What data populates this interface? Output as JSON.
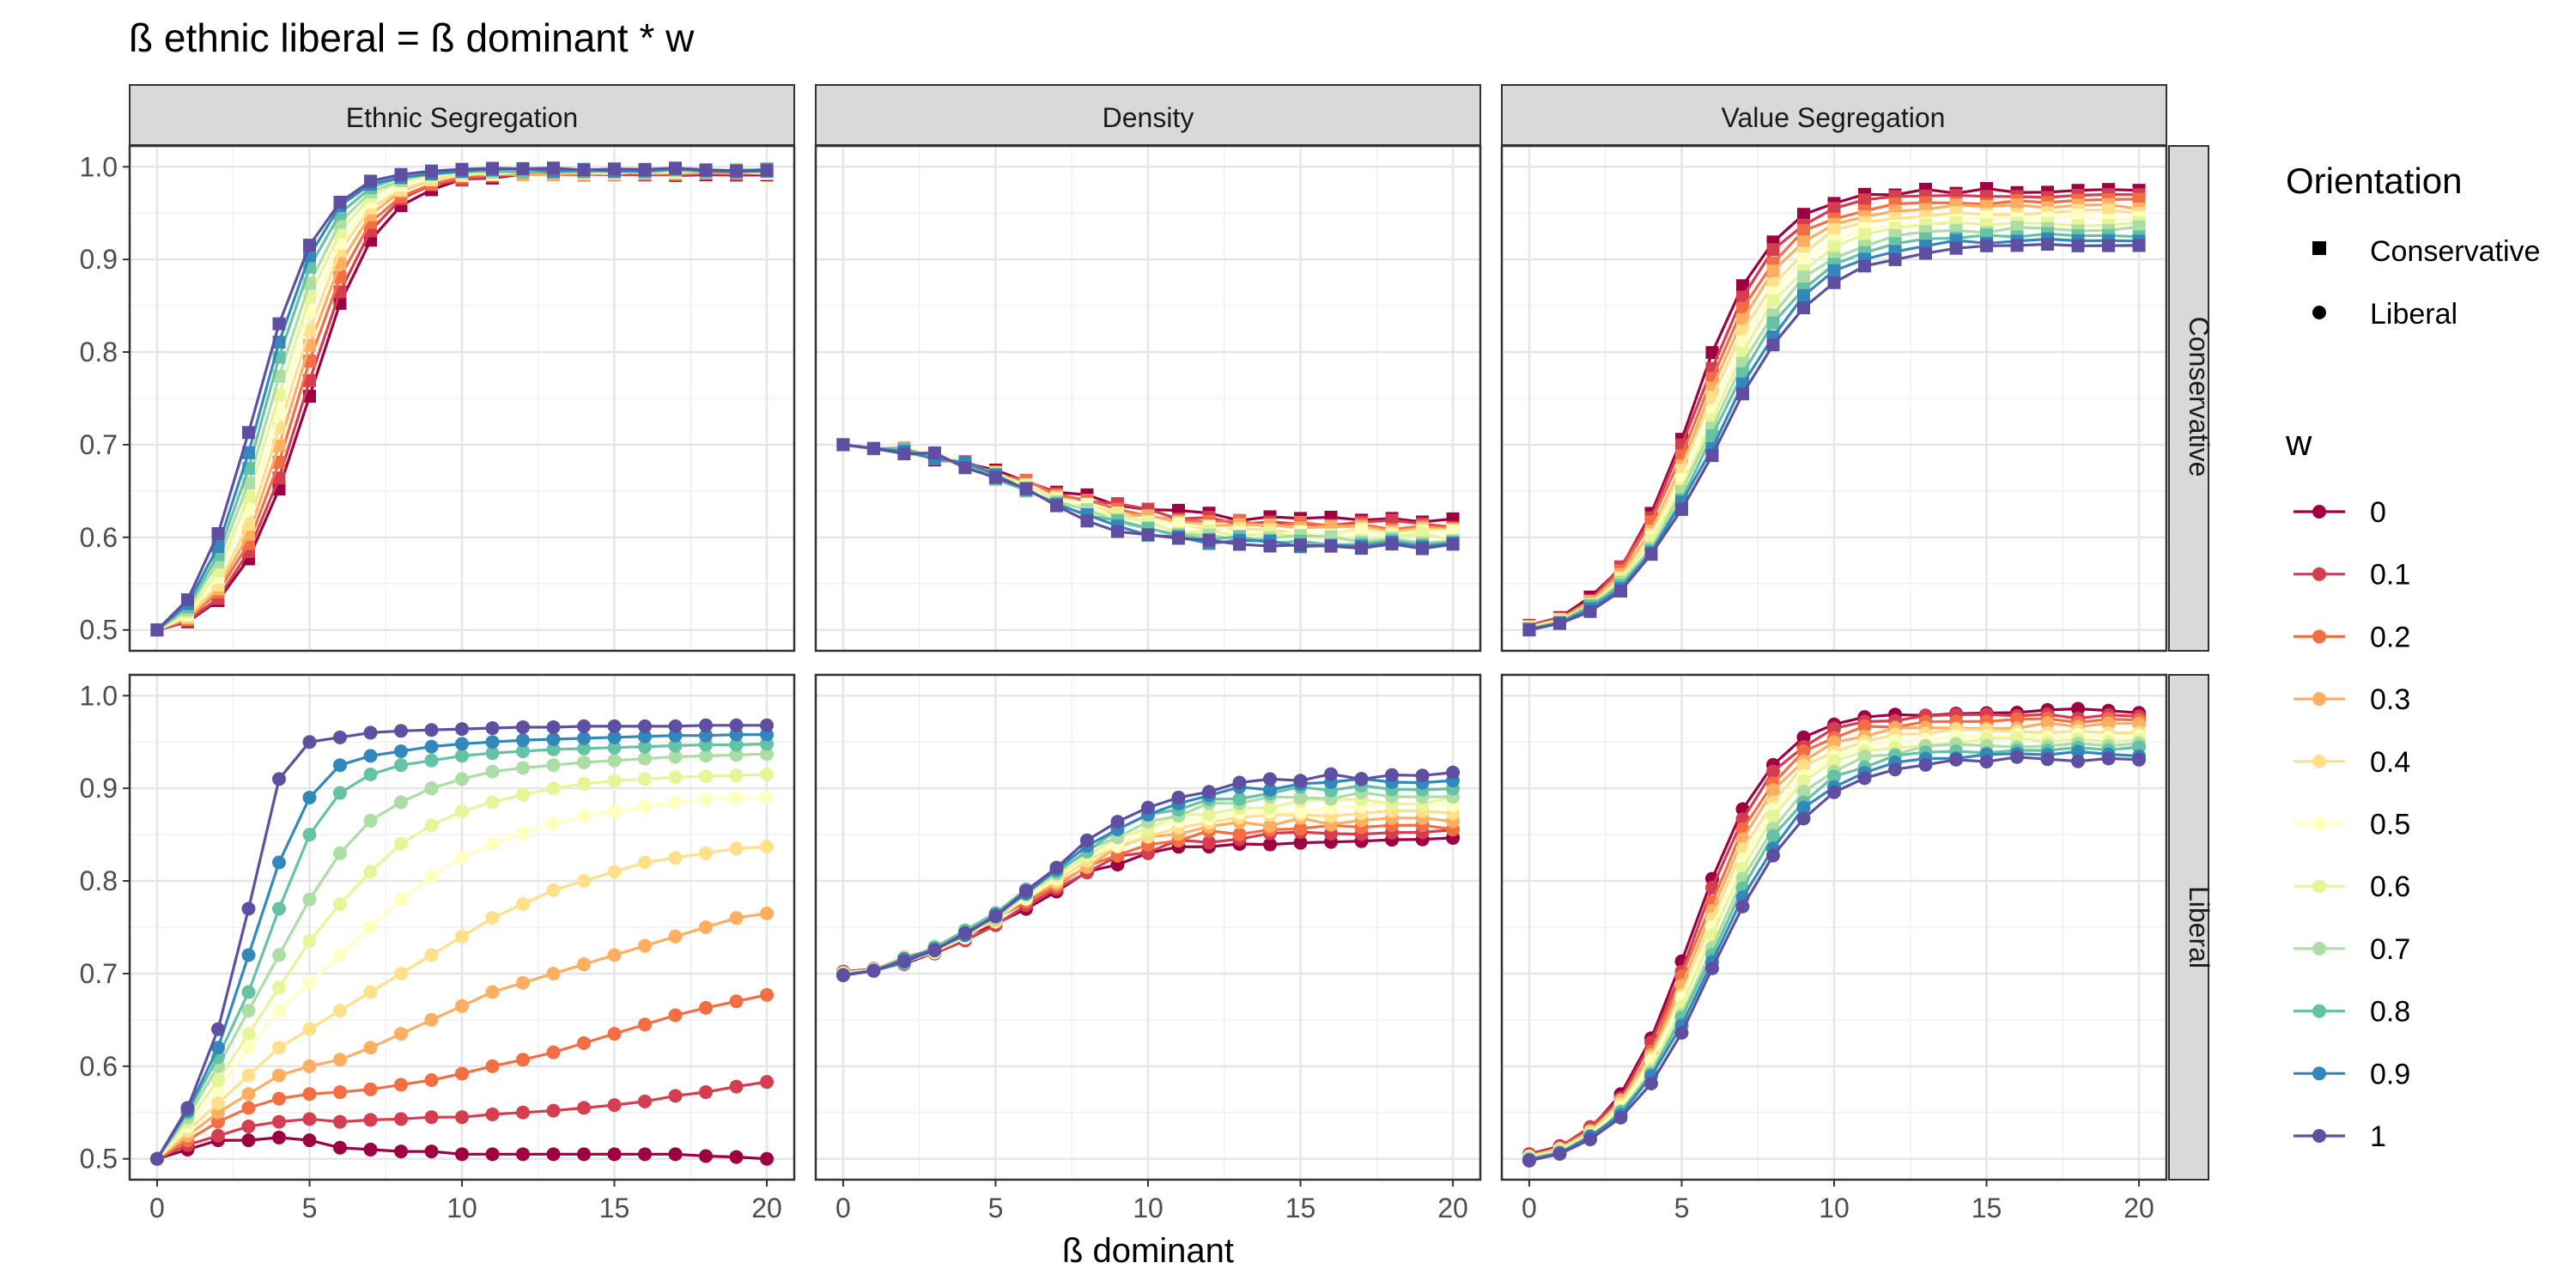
{
  "chart_data": {
    "type": "line",
    "title": "ß ethnic liberal = ß dominant * w",
    "xlabel": "ß dominant",
    "ylabel": "",
    "xlim": [
      0,
      20
    ],
    "ylim": [
      0.5,
      1.0
    ],
    "x_ticks": [
      0,
      5,
      10,
      15,
      20
    ],
    "y_ticks": [
      0.5,
      0.6,
      0.7,
      0.8,
      0.9,
      1.0
    ],
    "x_tick_labels": [
      "0",
      "5",
      "10",
      "15",
      "20"
    ],
    "y_tick_labels": [
      "0.5",
      "0.6",
      "0.7",
      "0.8",
      "0.9",
      "1.0"
    ],
    "grid": true,
    "facet_columns": [
      "Ethnic Segregation",
      "Density",
      "Value Segregation"
    ],
    "facet_rows": [
      "Conservative",
      "Liberal"
    ],
    "legend": {
      "position": "right",
      "orientation_title": "Orientation",
      "orientation_items": [
        {
          "label": "Conservative",
          "shape": "square"
        },
        {
          "label": "Liberal",
          "shape": "circle"
        }
      ],
      "w_title": "w",
      "w_items": [
        "0",
        "0.1",
        "0.2",
        "0.3",
        "0.4",
        "0.5",
        "0.6",
        "0.7",
        "0.8",
        "0.9",
        "1"
      ]
    },
    "w_colors": [
      "#9E0142",
      "#D53E4F",
      "#F46D43",
      "#FDAE61",
      "#FEE08B",
      "#FFFFBF",
      "#E6F598",
      "#ABDDA4",
      "#66C2A5",
      "#3288BD",
      "#5E4FA2"
    ],
    "w_values": [
      0,
      0.1,
      0.2,
      0.3,
      0.4,
      0.5,
      0.6,
      0.7,
      0.8,
      0.9,
      1
    ],
    "x": [
      0,
      1,
      2,
      3,
      4,
      5,
      6,
      7,
      8,
      9,
      10,
      11,
      12,
      13,
      14,
      15,
      16,
      17,
      18,
      19,
      20
    ],
    "panels": [
      {
        "facet_column": "Ethnic Segregation",
        "facet_row": "Conservative",
        "marker": "square",
        "start": [
          0.5,
          0.5
        ],
        "end": [
          0.992,
          0.997
        ],
        "mid": [
          4.9,
          3.2
        ],
        "steepness": [
          0.85,
          0.95
        ],
        "dip": [
          0,
          0
        ],
        "dip_at": 0,
        "noise": 0.002
      },
      {
        "facet_column": "Density",
        "facet_row": "Conservative",
        "marker": "square",
        "start": [
          0.7,
          0.7
        ],
        "end": [
          0.617,
          0.589
        ],
        "mid": [
          6.0,
          6.3
        ],
        "steepness": [
          0.45,
          0.55
        ],
        "dip": [
          0,
          0
        ],
        "dip_at": 0,
        "noise": 0.004
      },
      {
        "facet_column": "Value Segregation",
        "facet_row": "Conservative",
        "marker": "square",
        "start": [
          0.505,
          0.5
        ],
        "end": [
          0.975,
          0.915
        ],
        "mid": [
          5.3,
          6.2
        ],
        "steepness": [
          0.75,
          0.6
        ],
        "dip": [
          0,
          0
        ],
        "dip_at": 0,
        "noise": 0.003
      },
      {
        "facet_column": "Ethnic Segregation",
        "facet_row": "Liberal",
        "marker": "circle",
        "w_series": [
          {
            "w": "0",
            "values": [
              0.5,
              0.51,
              0.52,
              0.52,
              0.523,
              0.52,
              0.512,
              0.51,
              0.508,
              0.508,
              0.505,
              0.505,
              0.505,
              0.505,
              0.505,
              0.505,
              0.505,
              0.505,
              0.503,
              0.502,
              0.5
            ]
          },
          {
            "w": "0.1",
            "values": [
              0.5,
              0.515,
              0.525,
              0.535,
              0.54,
              0.543,
              0.54,
              0.542,
              0.543,
              0.545,
              0.545,
              0.548,
              0.55,
              0.552,
              0.555,
              0.558,
              0.562,
              0.568,
              0.572,
              0.578,
              0.583
            ]
          },
          {
            "w": "0.2",
            "values": [
              0.5,
              0.52,
              0.54,
              0.555,
              0.565,
              0.57,
              0.572,
              0.575,
              0.58,
              0.585,
              0.592,
              0.6,
              0.607,
              0.615,
              0.625,
              0.635,
              0.645,
              0.655,
              0.663,
              0.67,
              0.677
            ]
          },
          {
            "w": "0.3",
            "values": [
              0.5,
              0.525,
              0.55,
              0.57,
              0.59,
              0.6,
              0.607,
              0.62,
              0.635,
              0.65,
              0.665,
              0.68,
              0.69,
              0.7,
              0.71,
              0.72,
              0.73,
              0.74,
              0.75,
              0.76,
              0.765
            ]
          },
          {
            "w": "0.4",
            "values": [
              0.5,
              0.53,
              0.56,
              0.59,
              0.62,
              0.64,
              0.66,
              0.68,
              0.7,
              0.72,
              0.74,
              0.76,
              0.775,
              0.79,
              0.8,
              0.81,
              0.82,
              0.825,
              0.83,
              0.835,
              0.837
            ]
          },
          {
            "w": "0.5",
            "values": [
              0.5,
              0.535,
              0.575,
              0.62,
              0.66,
              0.69,
              0.72,
              0.75,
              0.78,
              0.805,
              0.825,
              0.84,
              0.852,
              0.862,
              0.87,
              0.875,
              0.88,
              0.885,
              0.888,
              0.89,
              0.89
            ]
          },
          {
            "w": "0.6",
            "values": [
              0.5,
              0.54,
              0.585,
              0.635,
              0.685,
              0.735,
              0.775,
              0.81,
              0.84,
              0.86,
              0.875,
              0.885,
              0.893,
              0.9,
              0.905,
              0.908,
              0.91,
              0.912,
              0.913,
              0.914,
              0.915
            ]
          },
          {
            "w": "0.7",
            "values": [
              0.5,
              0.545,
              0.6,
              0.66,
              0.72,
              0.78,
              0.83,
              0.865,
              0.885,
              0.9,
              0.91,
              0.918,
              0.922,
              0.925,
              0.928,
              0.93,
              0.932,
              0.934,
              0.935,
              0.936,
              0.937
            ]
          },
          {
            "w": "0.8",
            "values": [
              0.5,
              0.55,
              0.61,
              0.68,
              0.77,
              0.85,
              0.895,
              0.915,
              0.925,
              0.93,
              0.935,
              0.938,
              0.94,
              0.942,
              0.943,
              0.944,
              0.945,
              0.946,
              0.947,
              0.947,
              0.948
            ]
          },
          {
            "w": "0.9",
            "values": [
              0.5,
              0.552,
              0.62,
              0.72,
              0.82,
              0.89,
              0.925,
              0.935,
              0.94,
              0.945,
              0.948,
              0.95,
              0.952,
              0.953,
              0.954,
              0.955,
              0.956,
              0.957,
              0.957,
              0.958,
              0.958
            ]
          },
          {
            "w": "1",
            "values": [
              0.5,
              0.555,
              0.64,
              0.77,
              0.91,
              0.95,
              0.955,
              0.96,
              0.962,
              0.963,
              0.964,
              0.965,
              0.966,
              0.966,
              0.967,
              0.967,
              0.967,
              0.967,
              0.968,
              0.968,
              0.968
            ]
          }
        ]
      },
      {
        "facet_column": "Density",
        "facet_row": "Liberal",
        "marker": "circle",
        "start": [
          0.702,
          0.698
        ],
        "end": [
          0.845,
          0.915
        ],
        "mid": [
          5.8,
          6.4
        ],
        "steepness": [
          0.5,
          0.45
        ],
        "dip": [
          0,
          0
        ],
        "dip_at": 0,
        "noise": 0.004
      },
      {
        "facet_column": "Value Segregation",
        "facet_row": "Liberal",
        "marker": "circle",
        "start": [
          0.505,
          0.498
        ],
        "end": [
          0.983,
          0.932
        ],
        "mid": [
          5.3,
          6.1
        ],
        "steepness": [
          0.75,
          0.62
        ],
        "dip": [
          0,
          0
        ],
        "dip_at": 0,
        "noise": 0.003
      }
    ]
  }
}
